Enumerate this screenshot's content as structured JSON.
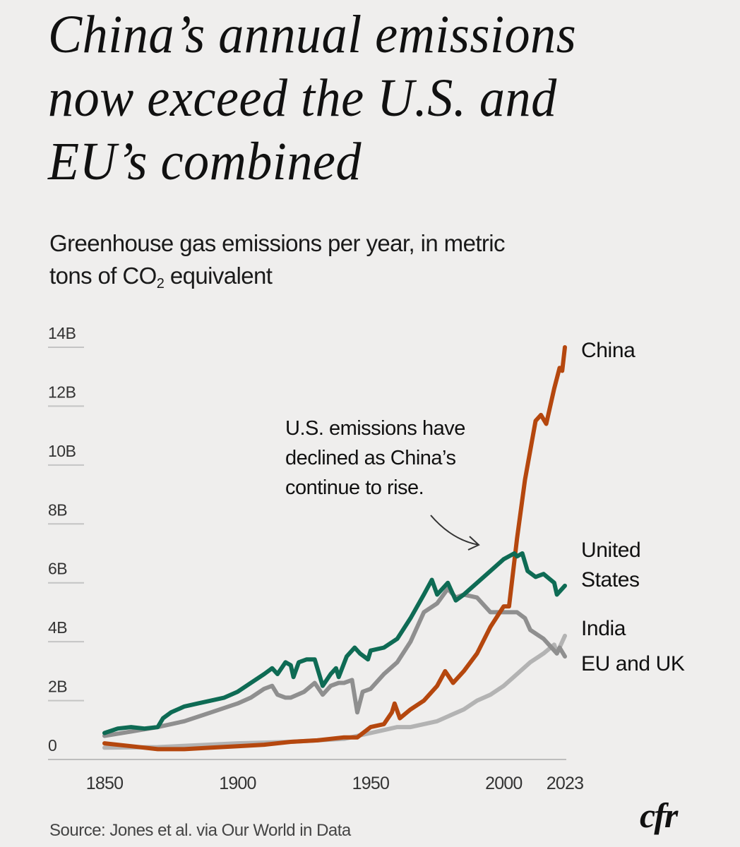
{
  "header": {
    "title": "China’s annual emissions now exceed the U.S. and EU’s combined",
    "subtitle_line1": "Greenhouse gas emissions per year, in metric",
    "subtitle_line2_pre": "tons of CO",
    "subtitle_sub": "2",
    "subtitle_line2_post": " equivalent"
  },
  "footer": {
    "source": "Source: Jones et al. via Our World in Data",
    "logo": "cfr"
  },
  "chart_data": {
    "type": "line",
    "title": "China’s annual emissions now exceed the U.S. and EU’s combined",
    "subtitle": "Greenhouse gas emissions per year, in metric tons of CO2 equivalent",
    "xlabel": "",
    "ylabel": "",
    "xlim": [
      1850,
      2023
    ],
    "ylim": [
      0,
      14
    ],
    "y_unit": "billion metric tons CO2e",
    "grid": "horizontal tick underlines",
    "legend": "direct labels at right end of lines",
    "x_ticks": [
      {
        "value": 1850,
        "label": "1850"
      },
      {
        "value": 1900,
        "label": "1900"
      },
      {
        "value": 1950,
        "label": "1950"
      },
      {
        "value": 2000,
        "label": "2000"
      },
      {
        "value": 2023,
        "label": "2023"
      }
    ],
    "y_ticks": [
      {
        "value": 0,
        "label": "0"
      },
      {
        "value": 2,
        "label": "2B"
      },
      {
        "value": 4,
        "label": "4B"
      },
      {
        "value": 6,
        "label": "6B"
      },
      {
        "value": 8,
        "label": "8B"
      },
      {
        "value": 10,
        "label": "10B"
      },
      {
        "value": 12,
        "label": "12B"
      },
      {
        "value": 14,
        "label": "14B"
      }
    ],
    "annotation": {
      "lines": [
        "U.S. emissions have",
        "declined as China’s",
        "continue to rise."
      ],
      "points_to": {
        "x": 2000,
        "y": 6.8
      }
    },
    "series": [
      {
        "name": "India",
        "label_lines": [
          "India"
        ],
        "color": "#b3b3b3",
        "x": [
          1850,
          1870,
          1900,
          1920,
          1940,
          1950,
          1955,
          1960,
          1965,
          1970,
          1975,
          1980,
          1985,
          1990,
          1995,
          2000,
          2005,
          2010,
          2015,
          2019,
          2020,
          2023
        ],
        "values": [
          0.4,
          0.42,
          0.55,
          0.6,
          0.7,
          0.9,
          1.0,
          1.1,
          1.1,
          1.2,
          1.3,
          1.5,
          1.7,
          2.0,
          2.2,
          2.5,
          2.9,
          3.3,
          3.6,
          3.9,
          3.6,
          4.2
        ]
      },
      {
        "name": "EU and UK",
        "label_lines": [
          "EU and UK"
        ],
        "color": "#8f8f8f",
        "x": [
          1850,
          1860,
          1870,
          1880,
          1890,
          1900,
          1905,
          1910,
          1913,
          1915,
          1918,
          1920,
          1925,
          1929,
          1932,
          1935,
          1938,
          1940,
          1943,
          1945,
          1947,
          1950,
          1955,
          1960,
          1965,
          1970,
          1975,
          1979,
          1982,
          1985,
          1990,
          1995,
          2000,
          2005,
          2008,
          2010,
          2015,
          2020,
          2021,
          2023
        ],
        "values": [
          0.8,
          0.95,
          1.1,
          1.3,
          1.6,
          1.9,
          2.1,
          2.4,
          2.5,
          2.2,
          2.1,
          2.1,
          2.3,
          2.6,
          2.2,
          2.5,
          2.6,
          2.6,
          2.7,
          1.6,
          2.3,
          2.4,
          2.9,
          3.3,
          4.0,
          5.0,
          5.3,
          5.8,
          5.5,
          5.6,
          5.5,
          5.0,
          5.0,
          5.0,
          4.8,
          4.4,
          4.1,
          3.6,
          3.8,
          3.5
        ]
      },
      {
        "name": "China",
        "label_lines": [
          "China"
        ],
        "color": "#b5470e",
        "x": [
          1850,
          1860,
          1870,
          1880,
          1890,
          1900,
          1910,
          1920,
          1930,
          1940,
          1945,
          1950,
          1955,
          1958,
          1959,
          1961,
          1965,
          1970,
          1975,
          1978,
          1981,
          1985,
          1990,
          1995,
          2000,
          2002,
          2005,
          2008,
          2010,
          2012,
          2014,
          2016,
          2019,
          2021,
          2022,
          2023
        ],
        "values": [
          0.55,
          0.45,
          0.35,
          0.35,
          0.4,
          0.45,
          0.5,
          0.6,
          0.65,
          0.75,
          0.75,
          1.1,
          1.2,
          1.6,
          1.9,
          1.4,
          1.7,
          2.0,
          2.5,
          3.0,
          2.6,
          3.0,
          3.6,
          4.5,
          5.2,
          5.2,
          7.5,
          9.5,
          10.5,
          11.5,
          11.7,
          11.4,
          12.6,
          13.3,
          13.2,
          14.0
        ]
      },
      {
        "name": "United States",
        "label_lines": [
          "United",
          "States"
        ],
        "color": "#0e6b54",
        "x": [
          1850,
          1855,
          1860,
          1865,
          1870,
          1872,
          1875,
          1880,
          1885,
          1890,
          1895,
          1900,
          1905,
          1910,
          1913,
          1915,
          1918,
          1920,
          1921,
          1923,
          1926,
          1929,
          1932,
          1935,
          1937,
          1938,
          1941,
          1944,
          1946,
          1949,
          1950,
          1955,
          1960,
          1965,
          1970,
          1973,
          1975,
          1979,
          1982,
          1985,
          1990,
          1995,
          2000,
          2004,
          2005,
          2007,
          2009,
          2012,
          2015,
          2019,
          2020,
          2023
        ],
        "values": [
          0.9,
          1.05,
          1.1,
          1.05,
          1.1,
          1.4,
          1.6,
          1.8,
          1.9,
          2.0,
          2.1,
          2.3,
          2.6,
          2.9,
          3.1,
          2.9,
          3.3,
          3.2,
          2.8,
          3.3,
          3.4,
          3.4,
          2.5,
          2.9,
          3.1,
          2.8,
          3.5,
          3.8,
          3.6,
          3.4,
          3.7,
          3.8,
          4.1,
          4.8,
          5.6,
          6.1,
          5.6,
          6.0,
          5.4,
          5.6,
          6.0,
          6.4,
          6.8,
          7.0,
          6.9,
          7.0,
          6.4,
          6.2,
          6.3,
          6.0,
          5.6,
          5.9
        ]
      }
    ]
  }
}
